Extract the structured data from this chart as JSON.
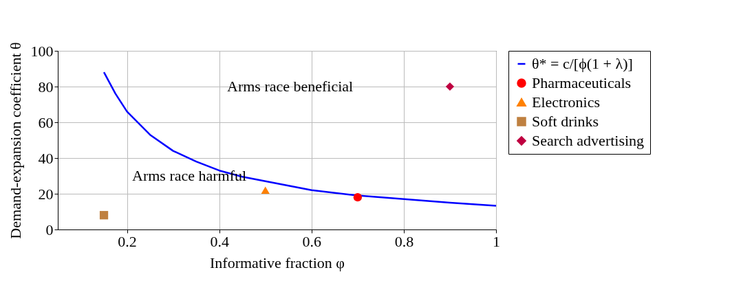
{
  "chart_data": {
    "type": "line",
    "xlabel": "Informative fraction φ",
    "ylabel": "Demand-expansion coefficient θ",
    "xlim": [
      0.05,
      1
    ],
    "ylim": [
      0,
      100
    ],
    "xticks": [
      0.2,
      0.4,
      0.6,
      0.8,
      1
    ],
    "yticks": [
      0,
      20,
      40,
      60,
      80,
      100
    ],
    "grid": true,
    "legend": "right",
    "series": [
      {
        "name": "θ* = c/[ϕ(1 + λ)]",
        "color": "#0000ff",
        "marker": "none",
        "x": [
          0.15,
          0.175,
          0.2,
          0.25,
          0.3,
          0.35,
          0.4,
          0.45,
          0.5,
          0.6,
          0.7,
          0.8,
          0.9,
          1
        ],
        "values": [
          88,
          76,
          66,
          53,
          44,
          38,
          33,
          29.5,
          27,
          22,
          19,
          17,
          15,
          13.3
        ]
      },
      {
        "name": "Pharmaceuticals",
        "type": "scatter",
        "color": "#ff0000",
        "marker": "circle",
        "x": [
          0.7
        ],
        "values": [
          18
        ]
      },
      {
        "name": "Electronics",
        "type": "scatter",
        "color": "#ff8000",
        "marker": "triangle",
        "x": [
          0.5
        ],
        "values": [
          22
        ]
      },
      {
        "name": "Soft drinks",
        "type": "scatter",
        "color": "#bf8040",
        "marker": "square",
        "x": [
          0.15
        ],
        "values": [
          8
        ]
      },
      {
        "name": "Search advertising",
        "type": "scatter",
        "color": "#bf0040",
        "marker": "diamond",
        "x": [
          0.9
        ],
        "values": [
          80
        ]
      }
    ],
    "annotations": [
      "Arms race beneficial",
      "Arms race harmful"
    ]
  }
}
